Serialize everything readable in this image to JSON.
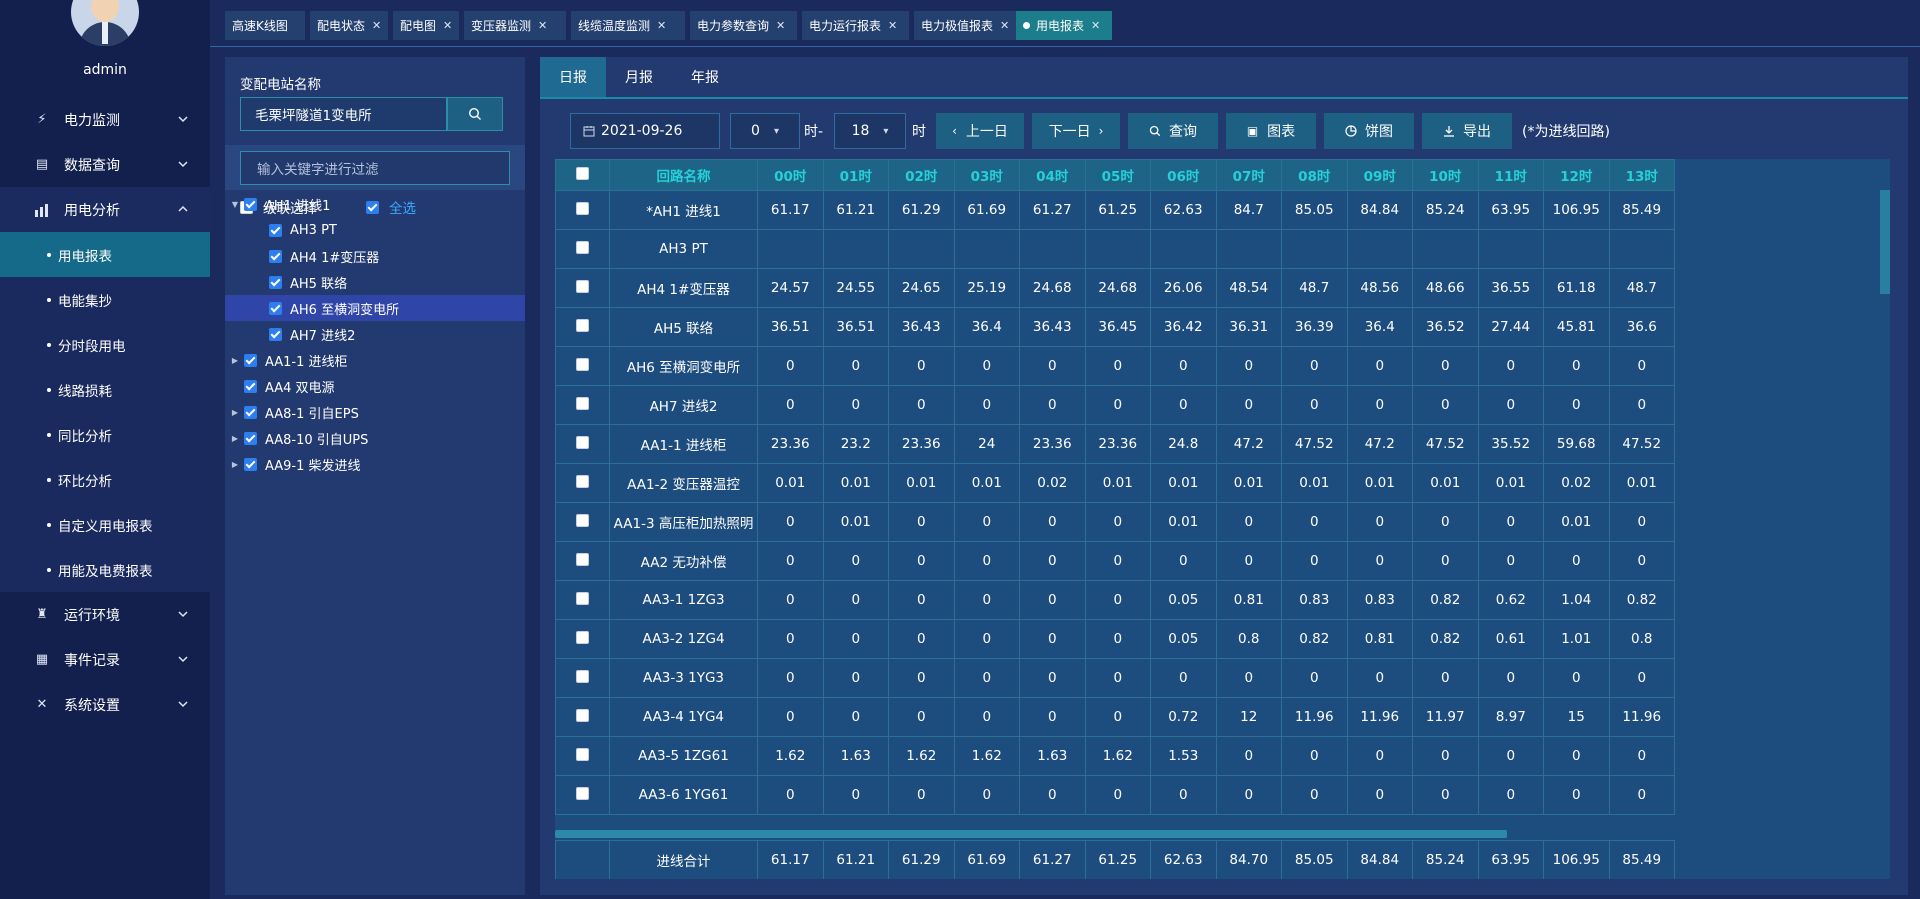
{
  "user": {
    "name": "admin"
  },
  "sidebar": {
    "menus": [
      {
        "label": "电力监测",
        "icon": "power-icon",
        "expanded": false
      },
      {
        "label": "数据查询",
        "icon": "chart-icon",
        "expanded": false
      },
      {
        "label": "用电分析",
        "icon": "bar-chart-icon",
        "expanded": true
      },
      {
        "label": "运行环境",
        "icon": "tower-icon",
        "expanded": false
      },
      {
        "label": "事件记录",
        "icon": "document-icon",
        "expanded": false
      },
      {
        "label": "系统设置",
        "icon": "tools-icon",
        "expanded": false
      }
    ],
    "submenu": [
      "用电报表",
      "电能集抄",
      "分时段用电",
      "线路损耗",
      "同比分析",
      "环比分析",
      "自定义用电报表",
      "用能及电费报表"
    ],
    "active_sub": "用电报表"
  },
  "tabs": [
    {
      "label": "高速K线图",
      "closable": false
    },
    {
      "label": "配电状态",
      "closable": true
    },
    {
      "label": "配电图",
      "closable": true
    },
    {
      "label": "变压器监测",
      "closable": true
    },
    {
      "label": "线缆温度监测",
      "closable": true
    },
    {
      "label": "电力参数查询",
      "closable": true
    },
    {
      "label": "电力运行报表",
      "closable": true
    },
    {
      "label": "电力极值报表",
      "closable": true
    },
    {
      "label": "用电报表",
      "closable": true,
      "active": true
    }
  ],
  "left_panel": {
    "station_label": "变配电站名称",
    "station_value": "毛栗坪隧道1变电所",
    "filter_placeholder": "输入关键字进行过滤",
    "cascade_label": "级联选择",
    "select_all_label": "全选",
    "tree": [
      {
        "label": "AH1 进线1",
        "level": 0,
        "arrow": "down",
        "checked": true
      },
      {
        "label": "AH3 PT",
        "level": 1,
        "arrow": "",
        "checked": true
      },
      {
        "label": "AH4 1#变压器",
        "level": 1,
        "arrow": "",
        "checked": true
      },
      {
        "label": "AH5 联络",
        "level": 1,
        "arrow": "",
        "checked": true
      },
      {
        "label": "AH6 至横洞变电所",
        "level": 1,
        "arrow": "",
        "checked": true,
        "selected": true
      },
      {
        "label": "AH7 进线2",
        "level": 1,
        "arrow": "",
        "checked": true
      },
      {
        "label": "AA1-1 进线柜",
        "level": 0,
        "arrow": "right",
        "checked": true
      },
      {
        "label": "AA4 双电源",
        "level": 0,
        "arrow": "",
        "checked": true
      },
      {
        "label": "AA8-1 引自EPS",
        "level": 0,
        "arrow": "right",
        "checked": true
      },
      {
        "label": "AA8-10 引自UPS",
        "level": 0,
        "arrow": "right",
        "checked": true
      },
      {
        "label": "AA9-1 柴发进线",
        "level": 0,
        "arrow": "right",
        "checked": true
      }
    ]
  },
  "report_tabs": [
    "日报",
    "月报",
    "年报"
  ],
  "toolbar": {
    "date": "2021-09-26",
    "hour_from": "0",
    "hour_sep": "时-",
    "hour_to": "18",
    "hour_unit": "时",
    "prev_label": "上一日",
    "next_label": "下一日",
    "query_label": "查询",
    "chart_label": "图表",
    "pie_label": "饼图",
    "export_label": "导出",
    "note": "(*为进线回路)"
  },
  "table": {
    "name_header": "回路名称",
    "hours": [
      "00时",
      "01时",
      "02时",
      "03时",
      "04时",
      "05时",
      "06时",
      "07时",
      "08时",
      "09时",
      "10时",
      "11时",
      "12时",
      "13时"
    ],
    "rows": [
      {
        "name": "*AH1 进线1",
        "values": [
          "61.17",
          "61.21",
          "61.29",
          "61.69",
          "61.27",
          "61.25",
          "62.63",
          "84.7",
          "85.05",
          "84.84",
          "85.24",
          "63.95",
          "106.95",
          "85.49"
        ]
      },
      {
        "name": "AH3 PT",
        "values": [
          "",
          "",
          "",
          "",
          "",
          "",
          "",
          "",
          "",
          "",
          "",
          "",
          "",
          ""
        ]
      },
      {
        "name": "AH4 1#变压器",
        "values": [
          "24.57",
          "24.55",
          "24.65",
          "25.19",
          "24.68",
          "24.68",
          "26.06",
          "48.54",
          "48.7",
          "48.56",
          "48.66",
          "36.55",
          "61.18",
          "48.7"
        ]
      },
      {
        "name": "AH5 联络",
        "values": [
          "36.51",
          "36.51",
          "36.43",
          "36.4",
          "36.43",
          "36.45",
          "36.42",
          "36.31",
          "36.39",
          "36.4",
          "36.52",
          "27.44",
          "45.81",
          "36.6"
        ]
      },
      {
        "name": "AH6 至横洞变电所",
        "values": [
          "0",
          "0",
          "0",
          "0",
          "0",
          "0",
          "0",
          "0",
          "0",
          "0",
          "0",
          "0",
          "0",
          "0"
        ]
      },
      {
        "name": "AH7 进线2",
        "values": [
          "0",
          "0",
          "0",
          "0",
          "0",
          "0",
          "0",
          "0",
          "0",
          "0",
          "0",
          "0",
          "0",
          "0"
        ]
      },
      {
        "name": "AA1-1 进线柜",
        "values": [
          "23.36",
          "23.2",
          "23.36",
          "24",
          "23.36",
          "23.36",
          "24.8",
          "47.2",
          "47.52",
          "47.2",
          "47.52",
          "35.52",
          "59.68",
          "47.52"
        ]
      },
      {
        "name": "AA1-2 变压器温控",
        "values": [
          "0.01",
          "0.01",
          "0.01",
          "0.01",
          "0.02",
          "0.01",
          "0.01",
          "0.01",
          "0.01",
          "0.01",
          "0.01",
          "0.01",
          "0.02",
          "0.01"
        ]
      },
      {
        "name": "AA1-3 高压柜加热照明",
        "values": [
          "0",
          "0.01",
          "0",
          "0",
          "0",
          "0",
          "0.01",
          "0",
          "0",
          "0",
          "0",
          "0",
          "0.01",
          "0"
        ]
      },
      {
        "name": "AA2 无功补偿",
        "values": [
          "0",
          "0",
          "0",
          "0",
          "0",
          "0",
          "0",
          "0",
          "0",
          "0",
          "0",
          "0",
          "0",
          "0"
        ]
      },
      {
        "name": "AA3-1 1ZG3",
        "values": [
          "0",
          "0",
          "0",
          "0",
          "0",
          "0",
          "0.05",
          "0.81",
          "0.83",
          "0.83",
          "0.82",
          "0.62",
          "1.04",
          "0.82"
        ]
      },
      {
        "name": "AA3-2 1ZG4",
        "values": [
          "0",
          "0",
          "0",
          "0",
          "0",
          "0",
          "0.05",
          "0.8",
          "0.82",
          "0.81",
          "0.82",
          "0.61",
          "1.01",
          "0.8"
        ]
      },
      {
        "name": "AA3-3 1YG3",
        "values": [
          "0",
          "0",
          "0",
          "0",
          "0",
          "0",
          "0",
          "0",
          "0",
          "0",
          "0",
          "0",
          "0",
          "0"
        ]
      },
      {
        "name": "AA3-4 1YG4",
        "values": [
          "0",
          "0",
          "0",
          "0",
          "0",
          "0",
          "0.72",
          "12",
          "11.96",
          "11.96",
          "11.97",
          "8.97",
          "15",
          "11.96"
        ]
      },
      {
        "name": "AA3-5 1ZG61",
        "values": [
          "1.62",
          "1.63",
          "1.62",
          "1.62",
          "1.63",
          "1.62",
          "1.53",
          "0",
          "0",
          "0",
          "0",
          "0",
          "0",
          "0"
        ]
      },
      {
        "name": "AA3-6 1YG61",
        "values": [
          "0",
          "0",
          "0",
          "0",
          "0",
          "0",
          "0",
          "0",
          "0",
          "0",
          "0",
          "0",
          "0",
          "0"
        ]
      }
    ],
    "total": {
      "name": "进线合计",
      "values": [
        "61.17",
        "61.21",
        "61.29",
        "61.69",
        "61.27",
        "61.25",
        "62.63",
        "84.70",
        "85.05",
        "84.84",
        "85.24",
        "63.95",
        "106.95",
        "85.49"
      ]
    }
  }
}
